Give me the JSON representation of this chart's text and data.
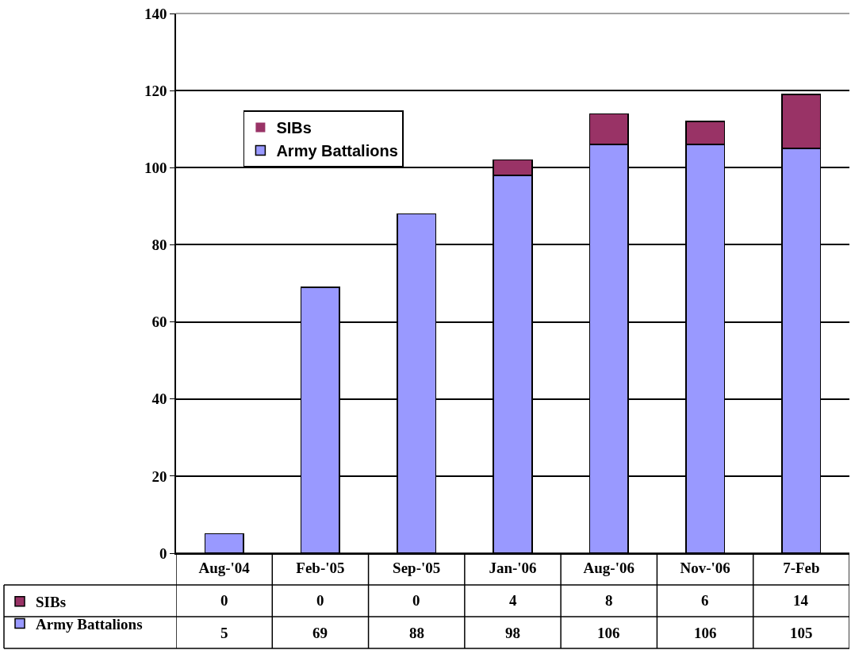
{
  "chart_data": {
    "type": "bar",
    "stacked": true,
    "categories": [
      "Aug-'04",
      "Feb-'05",
      "Sep-'05",
      "Jan-'06",
      "Aug-'06",
      "Nov-'06",
      "7-Feb"
    ],
    "series": [
      {
        "name": "Army Battalions",
        "color": "#9999ff",
        "values": [
          5,
          69,
          88,
          98,
          106,
          106,
          105
        ]
      },
      {
        "name": "SIBs",
        "color": "#993366",
        "values": [
          0,
          0,
          0,
          4,
          8,
          6,
          14
        ]
      }
    ],
    "ylim": [
      0,
      140
    ],
    "yticks": [
      0,
      20,
      40,
      60,
      80,
      100,
      120,
      140
    ],
    "grid": "y",
    "legend": "top left",
    "data_labels": true
  }
}
